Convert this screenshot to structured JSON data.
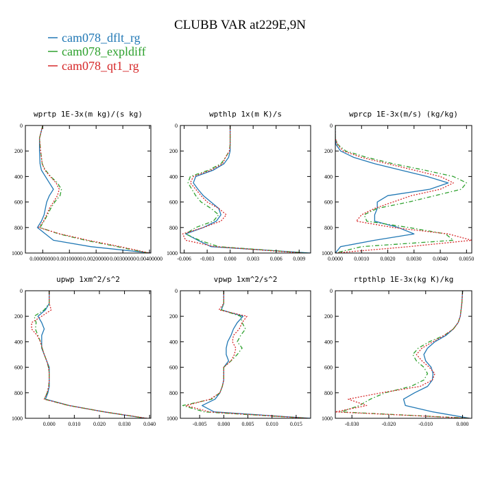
{
  "figure": {
    "title": "CLUBB VAR at229E,9N",
    "legend": [
      {
        "label": "cam078_dflt_rg",
        "color": "#1f77b4"
      },
      {
        "label": "cam078_expldiff",
        "color": "#2ca02c"
      },
      {
        "label": "cam078_qt1_rg",
        "color": "#d62728"
      }
    ]
  },
  "chart_data": [
    {
      "type": "line",
      "title": "wprtp  1E-3x(m kg)/(s kg)",
      "xlim": [
        -6.5e-06,
        4.05e-05
      ],
      "ylim": [
        1000,
        0
      ],
      "xticks": [
        "0.00000000",
        "0.00100000",
        "0.00200000",
        "0.00300000",
        "0.00400000"
      ],
      "xtick_values": [
        0,
        1e-05,
        2e-05,
        3e-05,
        4e-05
      ],
      "yticks": [
        0,
        200,
        400,
        600,
        800,
        1000
      ],
      "y": [
        0,
        100,
        150,
        200,
        250,
        300,
        350,
        400,
        450,
        500,
        550,
        600,
        650,
        700,
        750,
        800,
        850,
        900,
        950,
        1000
      ],
      "series": [
        {
          "name": "cam078_dflt_rg",
          "color": "#1f77b4",
          "dash": "",
          "x": [
            0,
            -1.2e-06,
            -1.2e-06,
            -1.2e-06,
            -1.1e-06,
            -1e-06,
            -5e-07,
            1e-06,
            2.5e-06,
            4e-06,
            2.5e-06,
            1.5e-06,
            1e-06,
            5e-07,
            -5e-07,
            -2e-06,
            1e-06,
            4e-06,
            1.8e-05,
            4.05e-05
          ]
        },
        {
          "name": "cam078_expldiff",
          "color": "#2ca02c",
          "dash": "6 3 1.5 3",
          "x": [
            0,
            -1.2e-06,
            -1e-06,
            -8e-07,
            -5e-07,
            -2e-07,
            1e-06,
            3e-06,
            5.5e-06,
            7e-06,
            6.5e-06,
            4.5e-06,
            3e-06,
            1.8e-06,
            5e-07,
            -1e-06,
            6e-06,
            1.6e-05,
            2.8e-05,
            3.95e-05
          ]
        },
        {
          "name": "cam078_qt1_rg",
          "color": "#d62728",
          "dash": "2 2",
          "x": [
            0,
            -1.2e-06,
            -1e-06,
            -8e-07,
            -5e-07,
            -2e-07,
            8e-07,
            2.8e-06,
            5e-06,
            6.2e-06,
            5.5e-06,
            4e-06,
            2.5e-06,
            1.5e-06,
            3e-07,
            -1.5e-06,
            6.5e-06,
            1.7e-05,
            2.9e-05,
            4e-05
          ]
        }
      ]
    },
    {
      "type": "line",
      "title": "wpthlp  1x(m K)/s",
      "xlim": [
        -0.0065,
        0.0105
      ],
      "ylim": [
        1000,
        0
      ],
      "xticks": [
        "-0.006",
        "-0.003",
        "0.000",
        "0.003",
        "0.006",
        "0.009"
      ],
      "xtick_values": [
        -0.006,
        -0.003,
        0,
        0.003,
        0.006,
        0.009
      ],
      "yticks": [
        0,
        200,
        400,
        600,
        800,
        1000
      ],
      "y": [
        0,
        100,
        150,
        200,
        250,
        300,
        350,
        400,
        450,
        500,
        550,
        600,
        650,
        700,
        750,
        800,
        850,
        900,
        950,
        1000
      ],
      "series": [
        {
          "name": "cam078_dflt_rg",
          "color": "#1f77b4",
          "dash": "",
          "x": [
            0,
            0,
            0,
            0,
            -0.0002,
            -0.0008,
            -0.0022,
            -0.0045,
            -0.0048,
            -0.0042,
            -0.0035,
            -0.0025,
            -0.0015,
            -0.0012,
            -0.0018,
            -0.0035,
            -0.0058,
            -0.0042,
            -0.0025,
            0.0105
          ]
        },
        {
          "name": "cam078_expldiff",
          "color": "#2ca02c",
          "dash": "6 3 1.5 3",
          "x": [
            0,
            0,
            0,
            -0.0001,
            -0.0006,
            -0.0012,
            -0.0028,
            -0.0052,
            -0.0055,
            -0.005,
            -0.0045,
            -0.0038,
            -0.0025,
            -0.0015,
            -0.0022,
            -0.0045,
            -0.0058,
            -0.004,
            -0.0015,
            0.01
          ]
        },
        {
          "name": "cam078_qt1_rg",
          "color": "#d62728",
          "dash": "2 2",
          "x": [
            0,
            0,
            0,
            -0.0001,
            -0.0006,
            -0.001,
            -0.0025,
            -0.0048,
            -0.0052,
            -0.0045,
            -0.0038,
            -0.003,
            -0.0015,
            -0.0005,
            -0.0012,
            -0.0035,
            -0.0062,
            -0.0058,
            -0.002,
            0.0095
          ]
        }
      ]
    },
    {
      "type": "line",
      "title": "wprcp  1E-3x(m/s) (kg/kg)",
      "xlim": [
        0,
        5.2e-06
      ],
      "ylim": [
        1000,
        0
      ],
      "xticks": [
        "0.0000",
        "0.0010",
        "0.0020",
        "0.0030",
        "0.0040",
        "0.0050"
      ],
      "xtick_values": [
        0,
        1e-06,
        2e-06,
        3e-06,
        4e-06,
        5e-06
      ],
      "yticks": [
        0,
        200,
        400,
        600,
        800,
        1000
      ],
      "y": [
        0,
        100,
        150,
        200,
        250,
        300,
        350,
        400,
        450,
        500,
        550,
        600,
        650,
        700,
        750,
        800,
        850,
        900,
        950,
        1000
      ],
      "series": [
        {
          "name": "cam078_dflt_rg",
          "color": "#1f77b4",
          "dash": "",
          "x": [
            0,
            0,
            3e-08,
            2e-07,
            7e-07,
            1.5e-06,
            2.5e-06,
            3.5e-06,
            4.3e-06,
            3.6e-06,
            2e-06,
            1.6e-06,
            1.6e-06,
            1.5e-06,
            1.5e-06,
            2.4e-06,
            3e-06,
            1.5e-06,
            2e-07,
            0
          ]
        },
        {
          "name": "cam078_expldiff",
          "color": "#2ca02c",
          "dash": "6 3 1.5 3",
          "x": [
            0,
            0,
            1e-07,
            4e-07,
            1.2e-06,
            2.2e-06,
            3.4e-06,
            4.5e-06,
            5e-06,
            4.8e-06,
            3.8e-06,
            2.8e-06,
            1.6e-06,
            1.1e-06,
            1.2e-06,
            2.8e-06,
            4.2e-06,
            4.5e-06,
            1e-06,
            0
          ]
        },
        {
          "name": "cam078_qt1_rg",
          "color": "#d62728",
          "dash": "2 2",
          "x": [
            0,
            0,
            8e-08,
            3e-07,
            1e-06,
            2e-06,
            3e-06,
            4e-06,
            4.5e-06,
            4e-06,
            2.9e-06,
            2.2e-06,
            1.5e-06,
            1e-06,
            8e-07,
            2.2e-06,
            4.3e-06,
            5.2e-06,
            2.8e-06,
            0
          ]
        }
      ]
    },
    {
      "type": "line",
      "title": "upwp  1xm^2/s^2",
      "xlim": [
        -0.0095,
        0.0405
      ],
      "ylim": [
        1000,
        0
      ],
      "xticks": [
        "0.000",
        "0.010",
        "0.020",
        "0.030",
        "0.040"
      ],
      "xtick_values": [
        0,
        0.01,
        0.02,
        0.03,
        0.04
      ],
      "yticks": [
        0,
        200,
        400,
        600,
        800,
        1000
      ],
      "y": [
        0,
        100,
        150,
        200,
        250,
        300,
        350,
        400,
        450,
        500,
        550,
        600,
        650,
        700,
        750,
        800,
        850,
        900,
        950,
        1000
      ],
      "series": [
        {
          "name": "cam078_dflt_rg",
          "color": "#1f77b4",
          "dash": "",
          "x": [
            0,
            0,
            -0.0015,
            -0.0045,
            -0.003,
            -0.002,
            -0.003,
            -0.003,
            -0.003,
            -0.002,
            -0.001,
            0,
            0,
            0,
            0,
            -0.0005,
            -0.0015,
            0.008,
            0.022,
            0.0385
          ]
        },
        {
          "name": "cam078_expldiff",
          "color": "#2ca02c",
          "dash": "6 3 1.5 3",
          "x": [
            0,
            0,
            -0.002,
            -0.006,
            -0.0052,
            -0.0055,
            -0.0045,
            -0.0035,
            -0.0028,
            -0.002,
            -0.001,
            -0.0003,
            0,
            0,
            -0.0002,
            -0.0008,
            -0.002,
            0.0078,
            0.022,
            0.0385
          ]
        },
        {
          "name": "cam078_qt1_rg",
          "color": "#d62728",
          "dash": "2 2",
          "x": [
            0,
            0,
            0.0008,
            -0.003,
            -0.007,
            -0.007,
            -0.0048,
            -0.0035,
            -0.0028,
            -0.002,
            -0.001,
            -0.0003,
            0,
            0,
            -0.0002,
            -0.0008,
            -0.002,
            0.0078,
            0.022,
            0.039
          ]
        }
      ]
    },
    {
      "type": "line",
      "title": "vpwp  1xm^2/s^2",
      "xlim": [
        -0.009,
        0.018
      ],
      "ylim": [
        1000,
        0
      ],
      "xticks": [
        "-0.005",
        "0.000",
        "0.005",
        "0.010",
        "0.015"
      ],
      "xtick_values": [
        -0.005,
        0,
        0.005,
        0.01,
        0.015
      ],
      "yticks": [
        0,
        200,
        400,
        600,
        800,
        1000
      ],
      "y": [
        0,
        100,
        150,
        200,
        250,
        300,
        350,
        400,
        450,
        500,
        550,
        600,
        650,
        700,
        750,
        800,
        850,
        900,
        950,
        1000
      ],
      "series": [
        {
          "name": "cam078_dflt_rg",
          "color": "#1f77b4",
          "dash": "",
          "x": [
            0,
            0,
            -0.0005,
            0.004,
            0.0028,
            0.002,
            0.0015,
            0.0008,
            0.0005,
            0.0005,
            0.001,
            0,
            0,
            0,
            -0.0003,
            -0.0008,
            -0.0018,
            -0.0045,
            -0.002,
            0.018
          ]
        },
        {
          "name": "cam078_expldiff",
          "color": "#2ca02c",
          "dash": "6 3 1.5 3",
          "x": [
            0,
            0,
            -0.0005,
            0.0035,
            0.0038,
            0.0045,
            0.0035,
            0.0028,
            0.0038,
            0.0028,
            0.0015,
            0,
            0,
            0,
            -0.0003,
            -0.0008,
            -0.0025,
            -0.0085,
            -0.004,
            0.0175
          ]
        },
        {
          "name": "cam078_qt1_rg",
          "color": "#d62728",
          "dash": "2 2",
          "x": [
            0,
            0,
            -0.001,
            0.0048,
            0.0038,
            0.0032,
            0.002,
            0.0018,
            0.0025,
            0.0022,
            0.0015,
            0,
            0,
            0,
            -0.0003,
            -0.0008,
            -0.0028,
            -0.0078,
            -0.003,
            0.0175
          ]
        }
      ]
    },
    {
      "type": "line",
      "title": "rtpthlp  1E-3x(kg K)/kg",
      "xlim": [
        -3.45e-05,
        2.5e-06
      ],
      "ylim": [
        1000,
        0
      ],
      "xticks": [
        "-0.030",
        "-0.020",
        "-0.010",
        "0.000"
      ],
      "xtick_values": [
        -3e-05,
        -2e-05,
        -1e-05,
        0
      ],
      "yticks": [
        0,
        200,
        400,
        600,
        800,
        1000
      ],
      "y": [
        0,
        100,
        150,
        200,
        250,
        300,
        350,
        400,
        450,
        500,
        550,
        600,
        650,
        700,
        750,
        800,
        850,
        900,
        950,
        1000
      ],
      "series": [
        {
          "name": "cam078_dflt_rg",
          "color": "#1f77b4",
          "dash": "",
          "x": [
            0,
            -2e-07,
            -4e-07,
            -6e-07,
            -1.2e-06,
            -2.5e-06,
            -4.5e-06,
            -7.5e-06,
            -9.5e-06,
            -1.05e-05,
            -1e-05,
            -8.5e-06,
            -8e-06,
            -8.2e-06,
            -9.5e-06,
            -1.3e-05,
            -1.6e-05,
            -1.55e-05,
            -8e-06,
            2e-06
          ]
        },
        {
          "name": "cam078_expldiff",
          "color": "#2ca02c",
          "dash": "6 3 1.5 3",
          "x": [
            0,
            -2e-07,
            -4e-07,
            -6e-07,
            -1.2e-06,
            -2.5e-06,
            -5e-06,
            -9e-06,
            -1.2e-05,
            -1.35e-05,
            -1.25e-05,
            -1.05e-05,
            -9.5e-06,
            -1.05e-05,
            -1.4e-05,
            -2.1e-05,
            -2.5e-05,
            -2.8e-05,
            -3.3e-05,
            2e-06
          ]
        },
        {
          "name": "cam078_qt1_rg",
          "color": "#d62728",
          "dash": "2 2",
          "x": [
            0,
            -2e-07,
            -4e-07,
            -6e-07,
            -1.2e-06,
            -2.5e-06,
            -5e-06,
            -8e-06,
            -1.1e-05,
            -1.25e-05,
            -1.1e-05,
            -9e-06,
            -7.5e-06,
            -8.2e-06,
            -1.15e-05,
            -2.2e-05,
            -3.1e-05,
            -2.6e-05,
            -3.45e-05,
            2e-06
          ]
        }
      ]
    }
  ]
}
